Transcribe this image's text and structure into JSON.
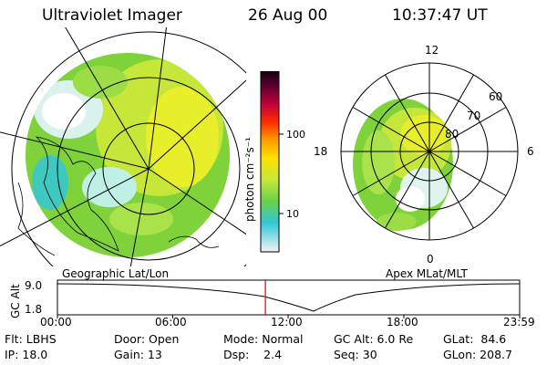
{
  "header": {
    "instrument": "Ultraviolet Imager",
    "date": "26 Aug 00",
    "time": "10:37:47 UT"
  },
  "left_panel": {
    "caption": "Geographic Lat/Lon"
  },
  "right_panel": {
    "caption": "Apex MLat/MLT",
    "mlt_labels": [
      "12",
      "18",
      "6",
      "0"
    ],
    "lat_labels": [
      "60",
      "70",
      "80"
    ]
  },
  "colorbar": {
    "unit": "photon cm⁻²s⁻¹",
    "ticks": [
      "100",
      "10"
    ]
  },
  "altitude_strip": {
    "axis_label": "GC Alt",
    "y_ticks": [
      "9.0",
      "1.8"
    ],
    "time_ticks": [
      "00:00",
      "06:00",
      "12:00",
      "18:00",
      "23:59"
    ],
    "current_time_fraction": 0.4499
  },
  "status": {
    "row1": [
      "Flt: LBHS",
      "Door: Open",
      "Mode: Normal",
      "GC Alt: 6.0 Re",
      "GLat:  84.6"
    ],
    "row2": [
      "IP: 18.0",
      "Gain: 13",
      "Dsp:    2.4",
      "Seq: 30",
      "GLon: 208.7"
    ]
  },
  "colors": {
    "time_marker": "#e00000",
    "aurora_green": "#7fd23a",
    "aurora_yellow": "#e8ee2a",
    "aurora_cyan": "#2fc6d6"
  }
}
